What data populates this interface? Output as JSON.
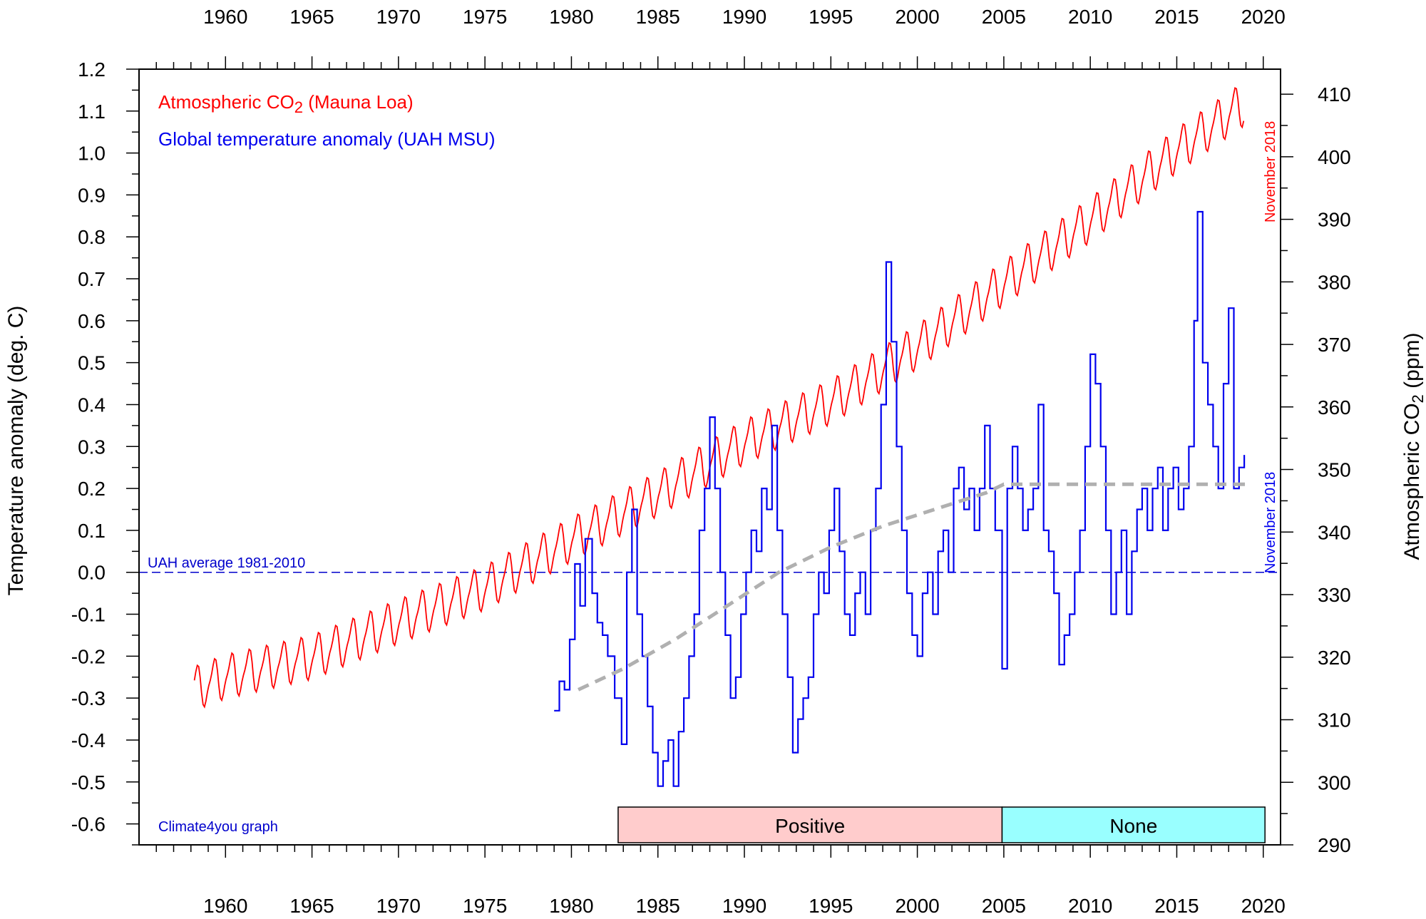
{
  "chart_data": {
    "type": "line",
    "legend": {
      "co2_label": "Atmospheric CO",
      "co2_subscript": "2",
      "co2_suffix": " (Mauna Loa)",
      "temp_label": "Global temperature anomaly (UAH MSU)"
    },
    "axes": {
      "x": {
        "range": [
          1955,
          2021
        ],
        "ticks": [
          1960,
          1965,
          1970,
          1975,
          1980,
          1985,
          1990,
          1995,
          2000,
          2005,
          2010,
          2015,
          2020
        ]
      },
      "y_left": {
        "label": "Temperature anomaly (deg. C)",
        "range": [
          -0.65,
          1.2
        ],
        "ticks": [
          "-0.6",
          "-0.5",
          "-0.4",
          "-0.3",
          "-0.2",
          "-0.1",
          "0.0",
          "0.1",
          "0.2",
          "0.3",
          "0.4",
          "0.5",
          "0.6",
          "0.7",
          "0.8",
          "0.9",
          "1.0",
          "1.1",
          "1.2"
        ]
      },
      "y_right": {
        "label_prefix": "Atmospheric CO",
        "label_subscript": "2",
        "label_suffix": " (ppm)",
        "range": [
          290,
          414
        ],
        "ticks": [
          290,
          300,
          310,
          320,
          330,
          340,
          350,
          360,
          370,
          380,
          390,
          400,
          410
        ]
      }
    },
    "reference_line": {
      "label": "UAH average 1981-2010",
      "y": 0.0,
      "color": "#0000cc"
    },
    "end_labels": {
      "co2": "November 2018",
      "temp": "November 2018"
    },
    "credit": "Climate4you graph",
    "bands": [
      {
        "label": "Positive",
        "start": 1982.7,
        "end": 2004.9,
        "color": "#ffcccc"
      },
      {
        "label": "None",
        "start": 2004.9,
        "end": 2020.1,
        "color": "#99ffff"
      }
    ],
    "series": [
      {
        "name": "Atmospheric CO2 (Mauna Loa)",
        "axis": "right",
        "color": "#ff0000",
        "trend_points": [
          [
            1958.2,
            315.0
          ],
          [
            1960,
            316.9
          ],
          [
            1965,
            320.0
          ],
          [
            1970,
            325.7
          ],
          [
            1975,
            331.1
          ],
          [
            1980,
            338.8
          ],
          [
            1985,
            346.1
          ],
          [
            1990,
            354.4
          ],
          [
            1995,
            360.8
          ],
          [
            2000,
            369.6
          ],
          [
            2005,
            379.8
          ],
          [
            2010,
            389.9
          ],
          [
            2015,
            401.0
          ],
          [
            2018.9,
            408.5
          ]
        ],
        "seasonal_amplitude": 3.2
      },
      {
        "name": "Global temperature anomaly (UAH MSU)",
        "axis": "left",
        "color": "#0000ee",
        "points": [
          [
            1979.0,
            -0.33
          ],
          [
            1979.3,
            -0.26
          ],
          [
            1979.6,
            -0.28
          ],
          [
            1979.9,
            -0.16
          ],
          [
            1980.2,
            0.02
          ],
          [
            1980.5,
            -0.08
          ],
          [
            1980.8,
            0.08
          ],
          [
            1981.2,
            -0.05
          ],
          [
            1981.5,
            -0.12
          ],
          [
            1981.8,
            -0.15
          ],
          [
            1982.1,
            -0.2
          ],
          [
            1982.5,
            -0.3
          ],
          [
            1982.9,
            -0.41
          ],
          [
            1983.2,
            0.0
          ],
          [
            1983.5,
            0.15
          ],
          [
            1983.8,
            -0.1
          ],
          [
            1984.1,
            -0.2
          ],
          [
            1984.4,
            -0.32
          ],
          [
            1984.7,
            -0.43
          ],
          [
            1985.0,
            -0.51
          ],
          [
            1985.3,
            -0.45
          ],
          [
            1985.6,
            -0.4
          ],
          [
            1985.9,
            -0.51
          ],
          [
            1986.2,
            -0.38
          ],
          [
            1986.5,
            -0.3
          ],
          [
            1986.8,
            -0.2
          ],
          [
            1987.1,
            -0.1
          ],
          [
            1987.4,
            0.1
          ],
          [
            1987.7,
            0.2
          ],
          [
            1988.0,
            0.37
          ],
          [
            1988.3,
            0.2
          ],
          [
            1988.6,
            0.0
          ],
          [
            1988.9,
            -0.15
          ],
          [
            1989.2,
            -0.3
          ],
          [
            1989.5,
            -0.25
          ],
          [
            1989.8,
            -0.1
          ],
          [
            1990.1,
            0.0
          ],
          [
            1990.4,
            0.1
          ],
          [
            1990.7,
            0.05
          ],
          [
            1991.0,
            0.2
          ],
          [
            1991.3,
            0.15
          ],
          [
            1991.6,
            0.35
          ],
          [
            1991.9,
            0.1
          ],
          [
            1992.2,
            -0.1
          ],
          [
            1992.5,
            -0.25
          ],
          [
            1992.8,
            -0.43
          ],
          [
            1993.1,
            -0.35
          ],
          [
            1993.4,
            -0.3
          ],
          [
            1993.7,
            -0.25
          ],
          [
            1994.0,
            -0.1
          ],
          [
            1994.3,
            0.0
          ],
          [
            1994.6,
            -0.05
          ],
          [
            1994.9,
            0.1
          ],
          [
            1995.2,
            0.2
          ],
          [
            1995.5,
            0.05
          ],
          [
            1995.8,
            -0.1
          ],
          [
            1996.1,
            -0.15
          ],
          [
            1996.4,
            -0.05
          ],
          [
            1996.7,
            0.0
          ],
          [
            1997.0,
            -0.1
          ],
          [
            1997.3,
            0.1
          ],
          [
            1997.6,
            0.2
          ],
          [
            1997.9,
            0.4
          ],
          [
            1998.2,
            0.74
          ],
          [
            1998.5,
            0.55
          ],
          [
            1998.8,
            0.3
          ],
          [
            1999.1,
            0.1
          ],
          [
            1999.4,
            -0.05
          ],
          [
            1999.7,
            -0.15
          ],
          [
            2000.0,
            -0.2
          ],
          [
            2000.3,
            -0.05
          ],
          [
            2000.6,
            0.0
          ],
          [
            2000.9,
            -0.1
          ],
          [
            2001.2,
            0.05
          ],
          [
            2001.5,
            0.1
          ],
          [
            2001.8,
            0.0
          ],
          [
            2002.1,
            0.2
          ],
          [
            2002.4,
            0.25
          ],
          [
            2002.7,
            0.15
          ],
          [
            2003.0,
            0.2
          ],
          [
            2003.3,
            0.1
          ],
          [
            2003.6,
            0.2
          ],
          [
            2003.9,
            0.35
          ],
          [
            2004.2,
            0.2
          ],
          [
            2004.5,
            0.1
          ],
          [
            2004.9,
            -0.23
          ],
          [
            2005.2,
            0.2
          ],
          [
            2005.5,
            0.3
          ],
          [
            2005.8,
            0.2
          ],
          [
            2006.1,
            0.1
          ],
          [
            2006.4,
            0.15
          ],
          [
            2006.7,
            0.2
          ],
          [
            2007.0,
            0.4
          ],
          [
            2007.3,
            0.1
          ],
          [
            2007.6,
            0.05
          ],
          [
            2007.9,
            -0.05
          ],
          [
            2008.2,
            -0.22
          ],
          [
            2008.5,
            -0.15
          ],
          [
            2008.8,
            -0.1
          ],
          [
            2009.1,
            0.0
          ],
          [
            2009.4,
            0.1
          ],
          [
            2009.7,
            0.3
          ],
          [
            2010.0,
            0.52
          ],
          [
            2010.3,
            0.45
          ],
          [
            2010.6,
            0.3
          ],
          [
            2010.9,
            0.1
          ],
          [
            2011.2,
            -0.1
          ],
          [
            2011.5,
            0.0
          ],
          [
            2011.8,
            0.1
          ],
          [
            2012.1,
            -0.1
          ],
          [
            2012.4,
            0.05
          ],
          [
            2012.7,
            0.15
          ],
          [
            2013.0,
            0.2
          ],
          [
            2013.3,
            0.1
          ],
          [
            2013.6,
            0.2
          ],
          [
            2013.9,
            0.25
          ],
          [
            2014.2,
            0.1
          ],
          [
            2014.5,
            0.2
          ],
          [
            2014.8,
            0.25
          ],
          [
            2015.1,
            0.15
          ],
          [
            2015.4,
            0.2
          ],
          [
            2015.7,
            0.3
          ],
          [
            2016.0,
            0.6
          ],
          [
            2016.2,
            0.86
          ],
          [
            2016.5,
            0.5
          ],
          [
            2016.8,
            0.4
          ],
          [
            2017.1,
            0.3
          ],
          [
            2017.4,
            0.2
          ],
          [
            2017.7,
            0.45
          ],
          [
            2018.0,
            0.63
          ],
          [
            2018.3,
            0.2
          ],
          [
            2018.6,
            0.25
          ],
          [
            2018.9,
            0.28
          ]
        ]
      },
      {
        "name": "temperature trend",
        "axis": "left",
        "color": "#b0b0b0",
        "dashed": true,
        "points": [
          [
            1980.4,
            -0.28
          ],
          [
            1983,
            -0.23
          ],
          [
            1986,
            -0.16
          ],
          [
            1989,
            -0.08
          ],
          [
            1992,
            0.0
          ],
          [
            1995,
            0.06
          ],
          [
            1998,
            0.11
          ],
          [
            2001,
            0.15
          ],
          [
            2004,
            0.19
          ],
          [
            2005,
            0.21
          ],
          [
            2010,
            0.21
          ],
          [
            2015,
            0.21
          ],
          [
            2019,
            0.21
          ]
        ]
      }
    ]
  }
}
